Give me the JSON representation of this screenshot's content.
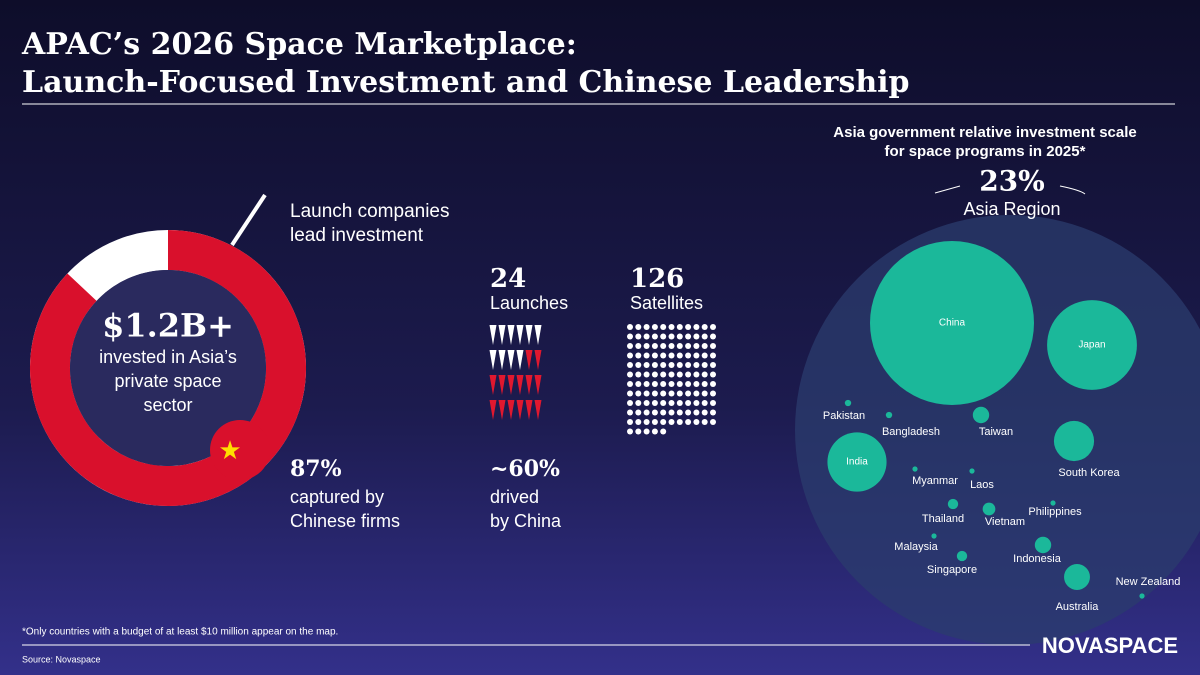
{
  "title_lines": [
    "APAC’s 2026 Space Marketplace:",
    "Launch-Focused Investment and Chinese Leadership"
  ],
  "investment": {
    "amount": "$1.2B+",
    "caption_lines": [
      "invested in Asia’s",
      "private space",
      "sector"
    ],
    "note_lines": [
      "Launch companies",
      "lead investment"
    ],
    "china_share": 87,
    "china_share_label": "87%",
    "china_caption_lines": [
      "captured by",
      "Chinese firms"
    ]
  },
  "launches": {
    "count": 24,
    "count_label": "24",
    "label": "Launches",
    "china_share": 60,
    "china_share_label": "~60%",
    "china_caption_lines": [
      "drived",
      "by China"
    ]
  },
  "satellites": {
    "count": 126,
    "count_label": "126",
    "label": "Satellites"
  },
  "bubbles": {
    "title_lines": [
      "Asia government relative investment scale",
      "for space programs in 2025*"
    ],
    "region_share": 23,
    "region_share_label": "23%",
    "region_label": "Asia Region",
    "countries": [
      {
        "name": "China",
        "value": 100
      },
      {
        "name": "Japan",
        "value": 30
      },
      {
        "name": "India",
        "value": 13
      },
      {
        "name": "South Korea",
        "value": 6
      },
      {
        "name": "Australia",
        "value": 2.5
      },
      {
        "name": "Taiwan",
        "value": 1
      },
      {
        "name": "Indonesia",
        "value": 1
      },
      {
        "name": "Vietnam",
        "value": 0.6
      },
      {
        "name": "Thailand",
        "value": 0.4
      },
      {
        "name": "Singapore",
        "value": 0.4
      },
      {
        "name": "Pakistan",
        "value": 0.15
      },
      {
        "name": "Bangladesh",
        "value": 0.15
      },
      {
        "name": "Myanmar",
        "value": 0.1
      },
      {
        "name": "Laos",
        "value": 0.1
      },
      {
        "name": "Philippines",
        "value": 0.1
      },
      {
        "name": "Malaysia",
        "value": 0.1
      },
      {
        "name": "New Zealand",
        "value": 0.1
      }
    ]
  },
  "footnote": "*Only countries with a budget of at least $10 million appear on the map.",
  "source": "Source: Novaspace",
  "logo": "NOVASPACE"
}
